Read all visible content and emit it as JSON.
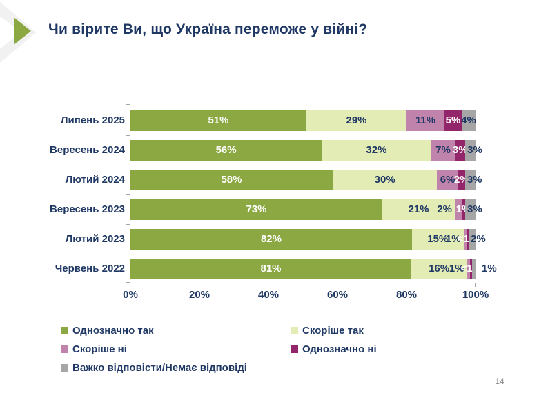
{
  "header": {
    "title": "Чи вірите Ви, що Україна переможе у війні?"
  },
  "page_number": "14",
  "colors": {
    "title_text": "#1F3864",
    "value_label_dark": "#1F3864",
    "value_label_light": "#FFFFFF",
    "axis": "#A6A6A6",
    "accent_green": "#8CA842",
    "corner_gray": "#F1F1F1",
    "page_number_gray": "#8C8C8C",
    "background": "#FFFFFF"
  },
  "chart_data": {
    "type": "bar",
    "variant": "horizontal-stacked",
    "title": "Чи вірите Ви, що Україна переможе у війні?",
    "categories": [
      "Липень 2025",
      "Вересень 2024",
      "Лютий 2024",
      "Вересень 2023",
      "Лютий 2023",
      "Червень 2022"
    ],
    "series": [
      {
        "name": "Однозначно так",
        "color": "#8CA842",
        "label_color": "#FFFFFF",
        "values": [
          51,
          56,
          58,
          73,
          82,
          81
        ],
        "labels": [
          "51%",
          "56%",
          "58%",
          "73%",
          "82%",
          "81%"
        ]
      },
      {
        "name": "Скоріше так",
        "color": "#E3ECB4",
        "label_color": "#1F3864",
        "values": [
          29,
          32,
          30,
          21,
          15,
          16
        ],
        "labels": [
          "29%",
          "32%",
          "30%",
          "21%",
          "15%",
          "16%"
        ]
      },
      {
        "name": "Скоріше ні",
        "color": "#C083AC",
        "label_color": "#1F3864",
        "values": [
          11,
          7,
          6,
          2,
          1,
          1
        ],
        "labels": [
          "11%",
          "7%",
          "6%",
          "2%",
          "1%",
          "1%"
        ]
      },
      {
        "name": "Однозначно ні",
        "color": "#93256B",
        "label_color": "#FFFFFF",
        "values": [
          5,
          3,
          2,
          1,
          0.5,
          0.5
        ],
        "labels": [
          "5%",
          "3%",
          "2%",
          "1%",
          "<1%",
          "<1%"
        ]
      },
      {
        "name": "Важко відповісти/Немає відповіді",
        "color": "#A6A6A6",
        "label_color": "#1F3864",
        "values": [
          4,
          3,
          3,
          3,
          2,
          1
        ],
        "labels": [
          "4%",
          "3%",
          "3%",
          "3%",
          "2%",
          "1%"
        ]
      }
    ],
    "xticks": [
      "0%",
      "20%",
      "40%",
      "60%",
      "80%",
      "100%"
    ],
    "xlim": [
      0,
      100
    ],
    "grid": false,
    "legend_position": "bottom"
  }
}
